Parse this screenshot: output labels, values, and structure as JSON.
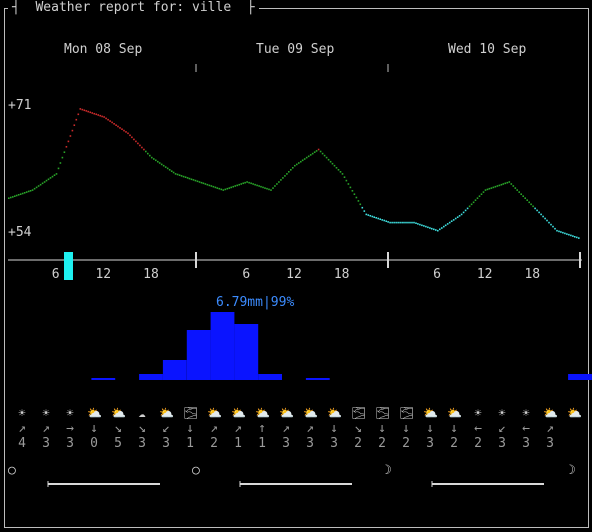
{
  "header": {
    "title": "Weather report for: ville"
  },
  "days": [
    "Mon 08 Sep",
    "Tue 09 Sep",
    "Wed 10 Sep"
  ],
  "temperature": {
    "max_label": "+71",
    "min_label": "+54",
    "ylim": [
      54,
      71
    ],
    "colors": {
      "cool": "#3fdfdf",
      "mild": "#29a329",
      "warm": "#cc2b2b"
    }
  },
  "hour_ticks": [
    "6",
    "12",
    "18",
    "6",
    "12",
    "18",
    "6",
    "12",
    "18"
  ],
  "precip": {
    "label": "6.79mm|99%",
    "label_color": "#3c8cff",
    "bar_color": "#0a14ff"
  },
  "chart_data": {
    "type": "line",
    "title": "",
    "xlabel": "",
    "ylabel": "",
    "x_hours": [
      0,
      3,
      6,
      9,
      12,
      15,
      18,
      21,
      24,
      27,
      30,
      33,
      36,
      39,
      42,
      45,
      48,
      51,
      54,
      57,
      60,
      63,
      66,
      69,
      72
    ],
    "series": [
      {
        "values": [
          59,
          60,
          62,
          70,
          69,
          67,
          64,
          62,
          61,
          60,
          61,
          60,
          63,
          65,
          62,
          57,
          56,
          56,
          55,
          57,
          60,
          61,
          58,
          55,
          54
        ]
      }
    ],
    "ylim": [
      54,
      71
    ],
    "legend": "none",
    "grid": false,
    "precip_mm_levels": [
      0,
      0,
      0,
      0,
      0.1,
      0,
      0.3,
      1.0,
      2.5,
      3.4,
      2.8,
      0.3,
      0,
      0.1,
      0,
      0,
      0,
      0,
      0,
      0,
      0,
      0,
      0,
      0,
      0.3
    ]
  },
  "forecast": {
    "icons": [
      "☀",
      "☀",
      "☀",
      "⛅",
      "⛅",
      "☁",
      "⛅",
      "🌫",
      "⛅",
      "⛅",
      "⛅",
      "⛅",
      "⛅",
      "⛅",
      "🌫",
      "🌫",
      "🌫",
      "⛅",
      "⛅",
      "☀",
      "☀",
      "☀",
      "⛅",
      "⛅"
    ],
    "wind_dirs": [
      "↗",
      "↗",
      "→",
      "↓",
      "↘",
      "↘",
      "↙",
      "↓",
      "↗",
      "↗",
      "↑",
      "↗",
      "↗",
      "↓",
      "↘",
      "↓",
      "↓",
      "↓",
      "↓",
      "←",
      "↙",
      "←",
      "↗"
    ],
    "wind_speeds": [
      "4",
      "3",
      "3",
      "0",
      "5",
      "3",
      "3",
      "1",
      "2",
      "1",
      "1",
      "3",
      "3",
      "3",
      "2",
      "2",
      "2",
      "3",
      "2",
      "2",
      "3",
      "3",
      "3"
    ]
  },
  "astro": {
    "moon_glyphs": [
      "○",
      "○",
      "☽",
      "☽"
    ]
  }
}
